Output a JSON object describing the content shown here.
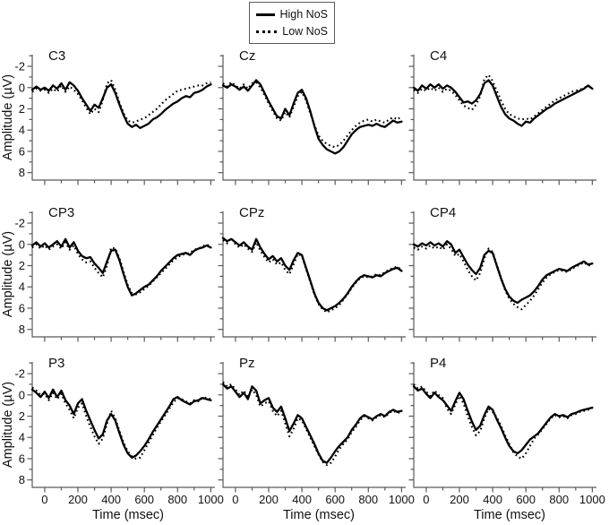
{
  "figure": {
    "background": "#ffffff",
    "line_color": "#000000",
    "legend": {
      "items": [
        {
          "label": "High NoS",
          "style": "solid"
        },
        {
          "label": "Low NoS",
          "style": "dotted"
        }
      ]
    },
    "axes": {
      "x_label": "Time (msec)",
      "y_label": "Amplitude (µV)",
      "x_ticks": [
        0,
        200,
        400,
        600,
        800,
        1000
      ],
      "x_minor_ticks": [
        100,
        300,
        500,
        700,
        900
      ],
      "y_ticks": [
        -2,
        0,
        2,
        4,
        6,
        8
      ],
      "y_minor_ticks": [
        -3,
        -1,
        1,
        3,
        5,
        7
      ],
      "x_domain": [
        -75,
        1025
      ],
      "y_domain": [
        -3.1,
        8.7
      ],
      "y_inverted": true
    }
  },
  "chart_data": {
    "type": "line",
    "title": "",
    "xlabel": "Time (msec)",
    "ylabel": "Amplitude (µV)",
    "x_start": -75,
    "x_step": 25,
    "x_unit": "msec",
    "y_unit": "µV",
    "note": "3x3 grid of ERP waveforms; y axis inverted (negative up). Two series per panel.",
    "panels": [
      {
        "label": "C3",
        "series": [
          {
            "name": "High NoS",
            "style": "solid",
            "values": [
              0.2,
              -0.1,
              0.2,
              0,
              0.3,
              -0.2,
              0.1,
              -0.4,
              0.2,
              -0.5,
              -0.2,
              0.3,
              1,
              1.6,
              2.2,
              1.6,
              1.9,
              1,
              0,
              -0.3,
              0.5,
              1.6,
              2.6,
              3.4,
              3.7,
              3.5,
              3.8,
              3.6,
              3.4,
              3,
              2.8,
              2.5,
              2.1,
              1.8,
              1.5,
              1.3,
              1,
              0.8,
              0.9,
              0.5,
              0.4,
              0.2,
              -0.1,
              -0.3
            ]
          },
          {
            "name": "Low NoS",
            "style": "dotted",
            "values": [
              0.4,
              0.1,
              0.3,
              0.2,
              0.5,
              0.1,
              0.4,
              -0.2,
              0.4,
              -0.1,
              0.2,
              0.6,
              1.2,
              1.9,
              2.5,
              2,
              2.3,
              1.2,
              -0.4,
              -0.7,
              0.2,
              1.4,
              2.4,
              3.1,
              3.3,
              3.2,
              3,
              2.9,
              2.6,
              2.3,
              2,
              1.6,
              1.2,
              0.9,
              0.6,
              0.3,
              0.2,
              0.1,
              0,
              -0.1,
              -0.2,
              -0.2,
              -0.4,
              -0.5
            ]
          }
        ]
      },
      {
        "label": "Cz",
        "series": [
          {
            "name": "High NoS",
            "style": "solid",
            "values": [
              -0.2,
              0,
              -0.3,
              -0.1,
              0.2,
              -0.1,
              0.3,
              -0.2,
              -0.7,
              -0.3,
              0.5,
              1.3,
              2,
              2.7,
              2.9,
              2,
              2.6,
              1.5,
              0.5,
              0.2,
              1,
              2.2,
              3.6,
              4.8,
              5.4,
              5.8,
              6,
              6.2,
              6,
              5.6,
              5,
              4.4,
              4,
              3.7,
              3.6,
              3.5,
              3.6,
              3.4,
              3.6,
              3.7,
              3.4,
              3.1,
              3.3,
              3.2
            ]
          },
          {
            "name": "Low NoS",
            "style": "dotted",
            "values": [
              -0.4,
              -0.1,
              -0.5,
              -0.2,
              0.1,
              -0.3,
              0.1,
              -0.4,
              -0.5,
              0,
              0.7,
              1.5,
              2.2,
              2.9,
              3.1,
              2.3,
              2.8,
              1.8,
              0.8,
              0.4,
              1.2,
              2.4,
              3.5,
              4.5,
              5,
              5.3,
              5.5,
              5.6,
              5.4,
              5,
              4.5,
              4,
              3.6,
              3.3,
              3.1,
              3,
              3.2,
              3,
              3.2,
              3.3,
              3,
              2.8,
              3,
              2.7
            ]
          }
        ]
      },
      {
        "label": "C4",
        "series": [
          {
            "name": "High NoS",
            "style": "solid",
            "values": [
              0,
              0.3,
              -0.2,
              0.1,
              -0.3,
              0,
              -0.3,
              0.1,
              -0.2,
              0,
              0.4,
              0.9,
              1.4,
              1.3,
              1.5,
              1.2,
              0.6,
              -0.4,
              -0.7,
              -0.2,
              0.8,
              1.8,
              2.5,
              2.9,
              3.1,
              3.4,
              3.6,
              3.2,
              3.3,
              2.9,
              2.6,
              2.3,
              2,
              1.8,
              1.5,
              1.3,
              1.1,
              0.9,
              0.7,
              0.5,
              0.3,
              0.1,
              -0.2,
              0.1
            ]
          },
          {
            "name": "Low NoS",
            "style": "dotted",
            "values": [
              0.2,
              0.5,
              0.1,
              0.3,
              0,
              0.3,
              0,
              0.4,
              0.1,
              0.3,
              0.7,
              1.2,
              1.7,
              1.9,
              2.1,
              1.6,
              0.8,
              -0.8,
              -1.2,
              -0.6,
              0.3,
              1.2,
              2,
              2.5,
              2.7,
              2.9,
              3,
              2.9,
              3,
              2.7,
              2.4,
              2.1,
              1.8,
              1.5,
              1.2,
              1,
              0.8,
              0.6,
              0.4,
              0.3,
              0.2,
              0,
              -0.1,
              0
            ]
          }
        ]
      },
      {
        "label": "CP3",
        "series": [
          {
            "name": "High NoS",
            "style": "solid",
            "values": [
              0.1,
              -0.2,
              0.2,
              -0.1,
              0.3,
              0,
              -0.3,
              0.2,
              -0.5,
              0.3,
              -0.2,
              0.6,
              1.1,
              1.3,
              1.2,
              1.8,
              2.2,
              2.7,
              1.6,
              0.6,
              0.5,
              1.5,
              2.8,
              4,
              4.8,
              4.6,
              4.3,
              4,
              3.8,
              3.4,
              3,
              2.5,
              2.1,
              1.7,
              1.3,
              1,
              0.9,
              0.8,
              1,
              0.6,
              0.4,
              0.3,
              0.1,
              0.3
            ]
          },
          {
            "name": "Low NoS",
            "style": "dotted",
            "values": [
              0.3,
              0,
              0.4,
              0.1,
              0.5,
              0.2,
              0,
              0.4,
              -0.2,
              0.5,
              0.1,
              0.9,
              1.4,
              1.7,
              1.6,
              2.2,
              2.7,
              3.1,
              2,
              0.3,
              0.4,
              1.3,
              2.6,
              3.8,
              4.6,
              4.7,
              4.5,
              4.2,
              3.9,
              3.5,
              3.1,
              2.7,
              2.3,
              1.9,
              1.5,
              1.2,
              1,
              0.9,
              0.8,
              0.5,
              0.4,
              0.2,
              0,
              0.2
            ]
          }
        ]
      },
      {
        "label": "CPz",
        "series": [
          {
            "name": "High NoS",
            "style": "solid",
            "values": [
              -0.6,
              -0.3,
              -0.5,
              -0.2,
              0.1,
              -0.2,
              0.2,
              0.5,
              -0.5,
              0.3,
              0.9,
              1.4,
              1.1,
              1.6,
              1.3,
              2,
              2.4,
              1.5,
              0.8,
              1,
              2.2,
              3.4,
              4.6,
              5.5,
              6,
              6.2,
              6,
              5.8,
              5.5,
              5.1,
              4.6,
              4,
              3.5,
              3.1,
              2.9,
              3,
              3.1,
              2.9,
              3,
              2.7,
              2.5,
              2.3,
              2.2,
              2.5
            ]
          },
          {
            "name": "Low NoS",
            "style": "dotted",
            "values": [
              -0.4,
              -0.1,
              -0.6,
              0,
              0.3,
              0,
              0.4,
              0.7,
              -0.2,
              0.6,
              1.2,
              1.7,
              1.4,
              1.9,
              1.7,
              2.4,
              2.8,
              1.9,
              0.9,
              1.1,
              2.3,
              3.5,
              4.7,
              5.6,
              6.1,
              6.4,
              6.2,
              6,
              5.7,
              5.2,
              4.7,
              4.1,
              3.6,
              3.2,
              3,
              3.1,
              3,
              2.8,
              2.9,
              2.6,
              2.4,
              2.2,
              2.1,
              2.4
            ]
          }
        ]
      },
      {
        "label": "CP4",
        "series": [
          {
            "name": "High NoS",
            "style": "solid",
            "values": [
              0,
              0.2,
              -0.1,
              0.1,
              -0.2,
              0.1,
              -0.1,
              0.2,
              -0.3,
              0,
              0.8,
              0.5,
              1.2,
              1.9,
              2.4,
              2.8,
              2.2,
              1,
              0.6,
              0.8,
              2,
              3.2,
              4.2,
              4.9,
              5.3,
              5.5,
              5.2,
              5,
              4.8,
              4.4,
              3.9,
              3.3,
              2.9,
              2.7,
              2.5,
              2.3,
              2.4,
              2.5,
              2.2,
              2,
              1.8,
              1.6,
              1.9,
              1.8
            ]
          },
          {
            "name": "Low NoS",
            "style": "dotted",
            "values": [
              0.3,
              0.5,
              0.2,
              0.4,
              0.1,
              0.4,
              0.2,
              0.5,
              0,
              0.4,
              1.1,
              0.9,
              1.6,
              2.4,
              3,
              3.4,
              2.7,
              1.3,
              0.4,
              0.7,
              1.9,
              3.1,
              4.3,
              5.1,
              5.6,
              5.9,
              6.1,
              5.7,
              5.3,
              4.8,
              4.2,
              3.6,
              3.1,
              2.8,
              2.6,
              2.4,
              2.5,
              2.6,
              2.3,
              2.1,
              1.9,
              1.7,
              2,
              1.9
            ]
          }
        ]
      },
      {
        "label": "P3",
        "series": [
          {
            "name": "High NoS",
            "style": "solid",
            "values": [
              -0.5,
              -0.2,
              0.2,
              -0.3,
              0.3,
              -0.5,
              0.2,
              -0.4,
              0.5,
              1,
              1.8,
              0.8,
              0.4,
              1.5,
              2.4,
              3.3,
              4.1,
              3.7,
              2.4,
              1.8,
              2.4,
              3.6,
              4.7,
              5.5,
              5.9,
              5.7,
              5.3,
              4.8,
              4.2,
              3.5,
              2.9,
              2.3,
              1.7,
              1.1,
              0.4,
              0.2,
              0.5,
              0.7,
              0.9,
              0.6,
              0.5,
              0.3,
              0.4,
              0.5
            ]
          },
          {
            "name": "Low NoS",
            "style": "dotted",
            "values": [
              -0.7,
              -0.4,
              0,
              -0.1,
              0.5,
              -0.2,
              0.4,
              -0.1,
              0.8,
              1.4,
              2.2,
              1.2,
              0.8,
              2,
              3,
              3.9,
              4.6,
              4.1,
              2.7,
              1.5,
              2.2,
              3.4,
              4.5,
              5.3,
              5.8,
              6,
              5.9,
              5.2,
              4.5,
              3.8,
              3.1,
              2.5,
              1.9,
              1.3,
              0.7,
              0.3,
              0.4,
              0.6,
              0.8,
              0.5,
              0.6,
              0.2,
              0.3,
              0.4
            ]
          }
        ]
      },
      {
        "label": "Pz",
        "series": [
          {
            "name": "High NoS",
            "style": "solid",
            "values": [
              -1,
              -0.6,
              -0.8,
              -0.3,
              0.2,
              -0.2,
              0.4,
              -0.8,
              -0.4,
              0.8,
              0.5,
              0.3,
              1.2,
              1.6,
              1.1,
              2.2,
              3.4,
              2.7,
              1.9,
              2.2,
              3,
              3.8,
              4.6,
              5.5,
              6.2,
              6.4,
              5.9,
              5.3,
              4.8,
              4.4,
              4,
              3.3,
              2.8,
              2.2,
              1.9,
              2.1,
              2.3,
              2,
              1.8,
              2,
              1.6,
              1.4,
              1.6,
              1.5
            ]
          },
          {
            "name": "Low NoS",
            "style": "dotted",
            "values": [
              -1.2,
              -0.8,
              -1,
              -0.5,
              0,
              -0.4,
              0.2,
              -0.5,
              0,
              1.1,
              0.8,
              0.6,
              1.5,
              2,
              1.5,
              2.7,
              3.9,
              3.2,
              2.2,
              2.4,
              3.2,
              4,
              4.8,
              5.6,
              6.3,
              6.6,
              6.4,
              5.8,
              5.1,
              4.6,
              4.2,
              3.5,
              3,
              2.4,
              2,
              2.2,
              2.4,
              2.1,
              1.9,
              2.1,
              1.7,
              1.5,
              1.7,
              1.6
            ]
          }
        ]
      },
      {
        "label": "P4",
        "series": [
          {
            "name": "High NoS",
            "style": "solid",
            "values": [
              -0.8,
              -0.4,
              -0.6,
              -0.1,
              0.3,
              -0.2,
              0.2,
              0.5,
              1,
              1.5,
              0.6,
              -0.2,
              0.4,
              1.5,
              2.5,
              3.3,
              2.9,
              1.9,
              1.1,
              1.4,
              2.3,
              3.1,
              4,
              4.8,
              5.3,
              5.5,
              5.2,
              4.7,
              4.2,
              3.9,
              3.6,
              3.1,
              2.6,
              2.1,
              1.8,
              2,
              1.9,
              2.1,
              1.8,
              1.7,
              1.5,
              1.4,
              1.3,
              1.2
            ]
          },
          {
            "name": "Low NoS",
            "style": "dotted",
            "values": [
              -1,
              -0.6,
              -0.8,
              -0.3,
              0.1,
              -0.4,
              0,
              0.3,
              1.3,
              1.8,
              0.9,
              0.1,
              0.8,
              2,
              3,
              3.8,
              3.4,
              2.2,
              1.3,
              1.6,
              2.1,
              2.9,
              3.8,
              4.6,
              5.4,
              5.8,
              6,
              5.5,
              4.8,
              4.1,
              3.7,
              3.2,
              2.7,
              2.2,
              1.9,
              2.1,
              2,
              2.2,
              1.9,
              1.8,
              1.6,
              1.5,
              1.4,
              1.3
            ]
          }
        ]
      }
    ]
  }
}
